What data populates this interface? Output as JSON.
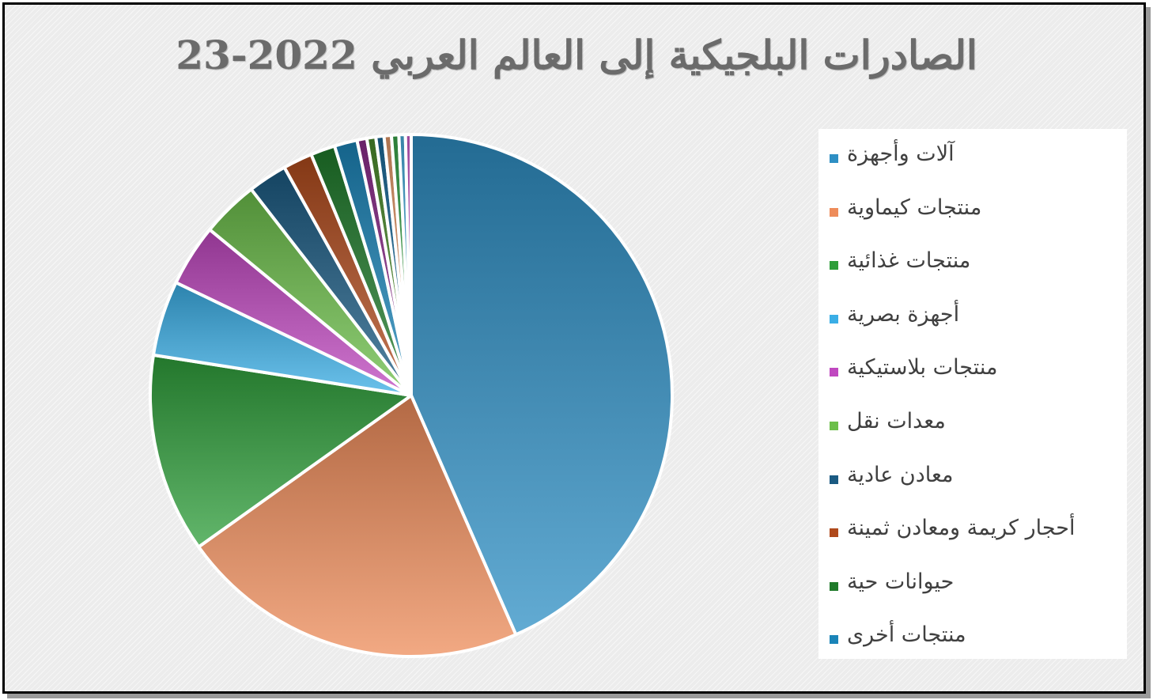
{
  "chart_data": {
    "type": "pie",
    "title": "الصادرات البلجيكية إلى العالم العربي 2022-23",
    "legend_position": "right",
    "slices": [
      {
        "name": "آلات وأجهزة",
        "value": 43.0,
        "color": "#2e8fc4"
      },
      {
        "name": "منتجات كيماوية",
        "value": 21.5,
        "color": "#ee8c5a"
      },
      {
        "name": "منتجات غذائية",
        "value": 12.2,
        "color": "#2e9e3a"
      },
      {
        "name": "أجهزة بصرية",
        "value": 4.6,
        "color": "#3aaee6"
      },
      {
        "name": "منتجات بلاستيكية",
        "value": 3.8,
        "color": "#c048c0"
      },
      {
        "name": "معدات نقل",
        "value": 3.5,
        "color": "#6cbf4a"
      },
      {
        "name": "معادن عادية",
        "value": 2.4,
        "color": "#1a5a82"
      },
      {
        "name": "أحجار كريمة ومعادن ثمينة",
        "value": 1.8,
        "color": "#b04a1c"
      },
      {
        "name": "حيوانات حية",
        "value": 1.5,
        "color": "#1f7a2a"
      },
      {
        "name": "منتجات أخرى",
        "value": 1.4,
        "color": "#1a84b8"
      },
      {
        "name": "",
        "value": 0.6,
        "color": "#8a2a8a"
      },
      {
        "name": "",
        "value": 0.55,
        "color": "#4a8a2a"
      },
      {
        "name": "",
        "value": 0.5,
        "color": "#1a6a9a"
      },
      {
        "name": "",
        "value": 0.45,
        "color": "#e89a6a"
      },
      {
        "name": "",
        "value": 0.45,
        "color": "#3aa64a"
      },
      {
        "name": "",
        "value": 0.4,
        "color": "#4ab0e0"
      },
      {
        "name": "",
        "value": 0.35,
        "color": "#d060d0"
      }
    ],
    "legend_entries": [
      {
        "label": "آلات وأجهزة",
        "color": "#2e8fc4"
      },
      {
        "label": "منتجات كيماوية",
        "color": "#ee8c5a"
      },
      {
        "label": "منتجات غذائية",
        "color": "#2e9e3a"
      },
      {
        "label": "أجهزة بصرية",
        "color": "#3aaee6"
      },
      {
        "label": "منتجات بلاستيكية",
        "color": "#c048c0"
      },
      {
        "label": "معدات نقل",
        "color": "#6cbf4a"
      },
      {
        "label": "معادن عادية",
        "color": "#1a5a82"
      },
      {
        "label": "أحجار كريمة ومعادن ثمينة",
        "color": "#b04a1c"
      },
      {
        "label": "حيوانات حية",
        "color": "#1f7a2a"
      },
      {
        "label": "منتجات أخرى",
        "color": "#1a84b8"
      }
    ]
  }
}
